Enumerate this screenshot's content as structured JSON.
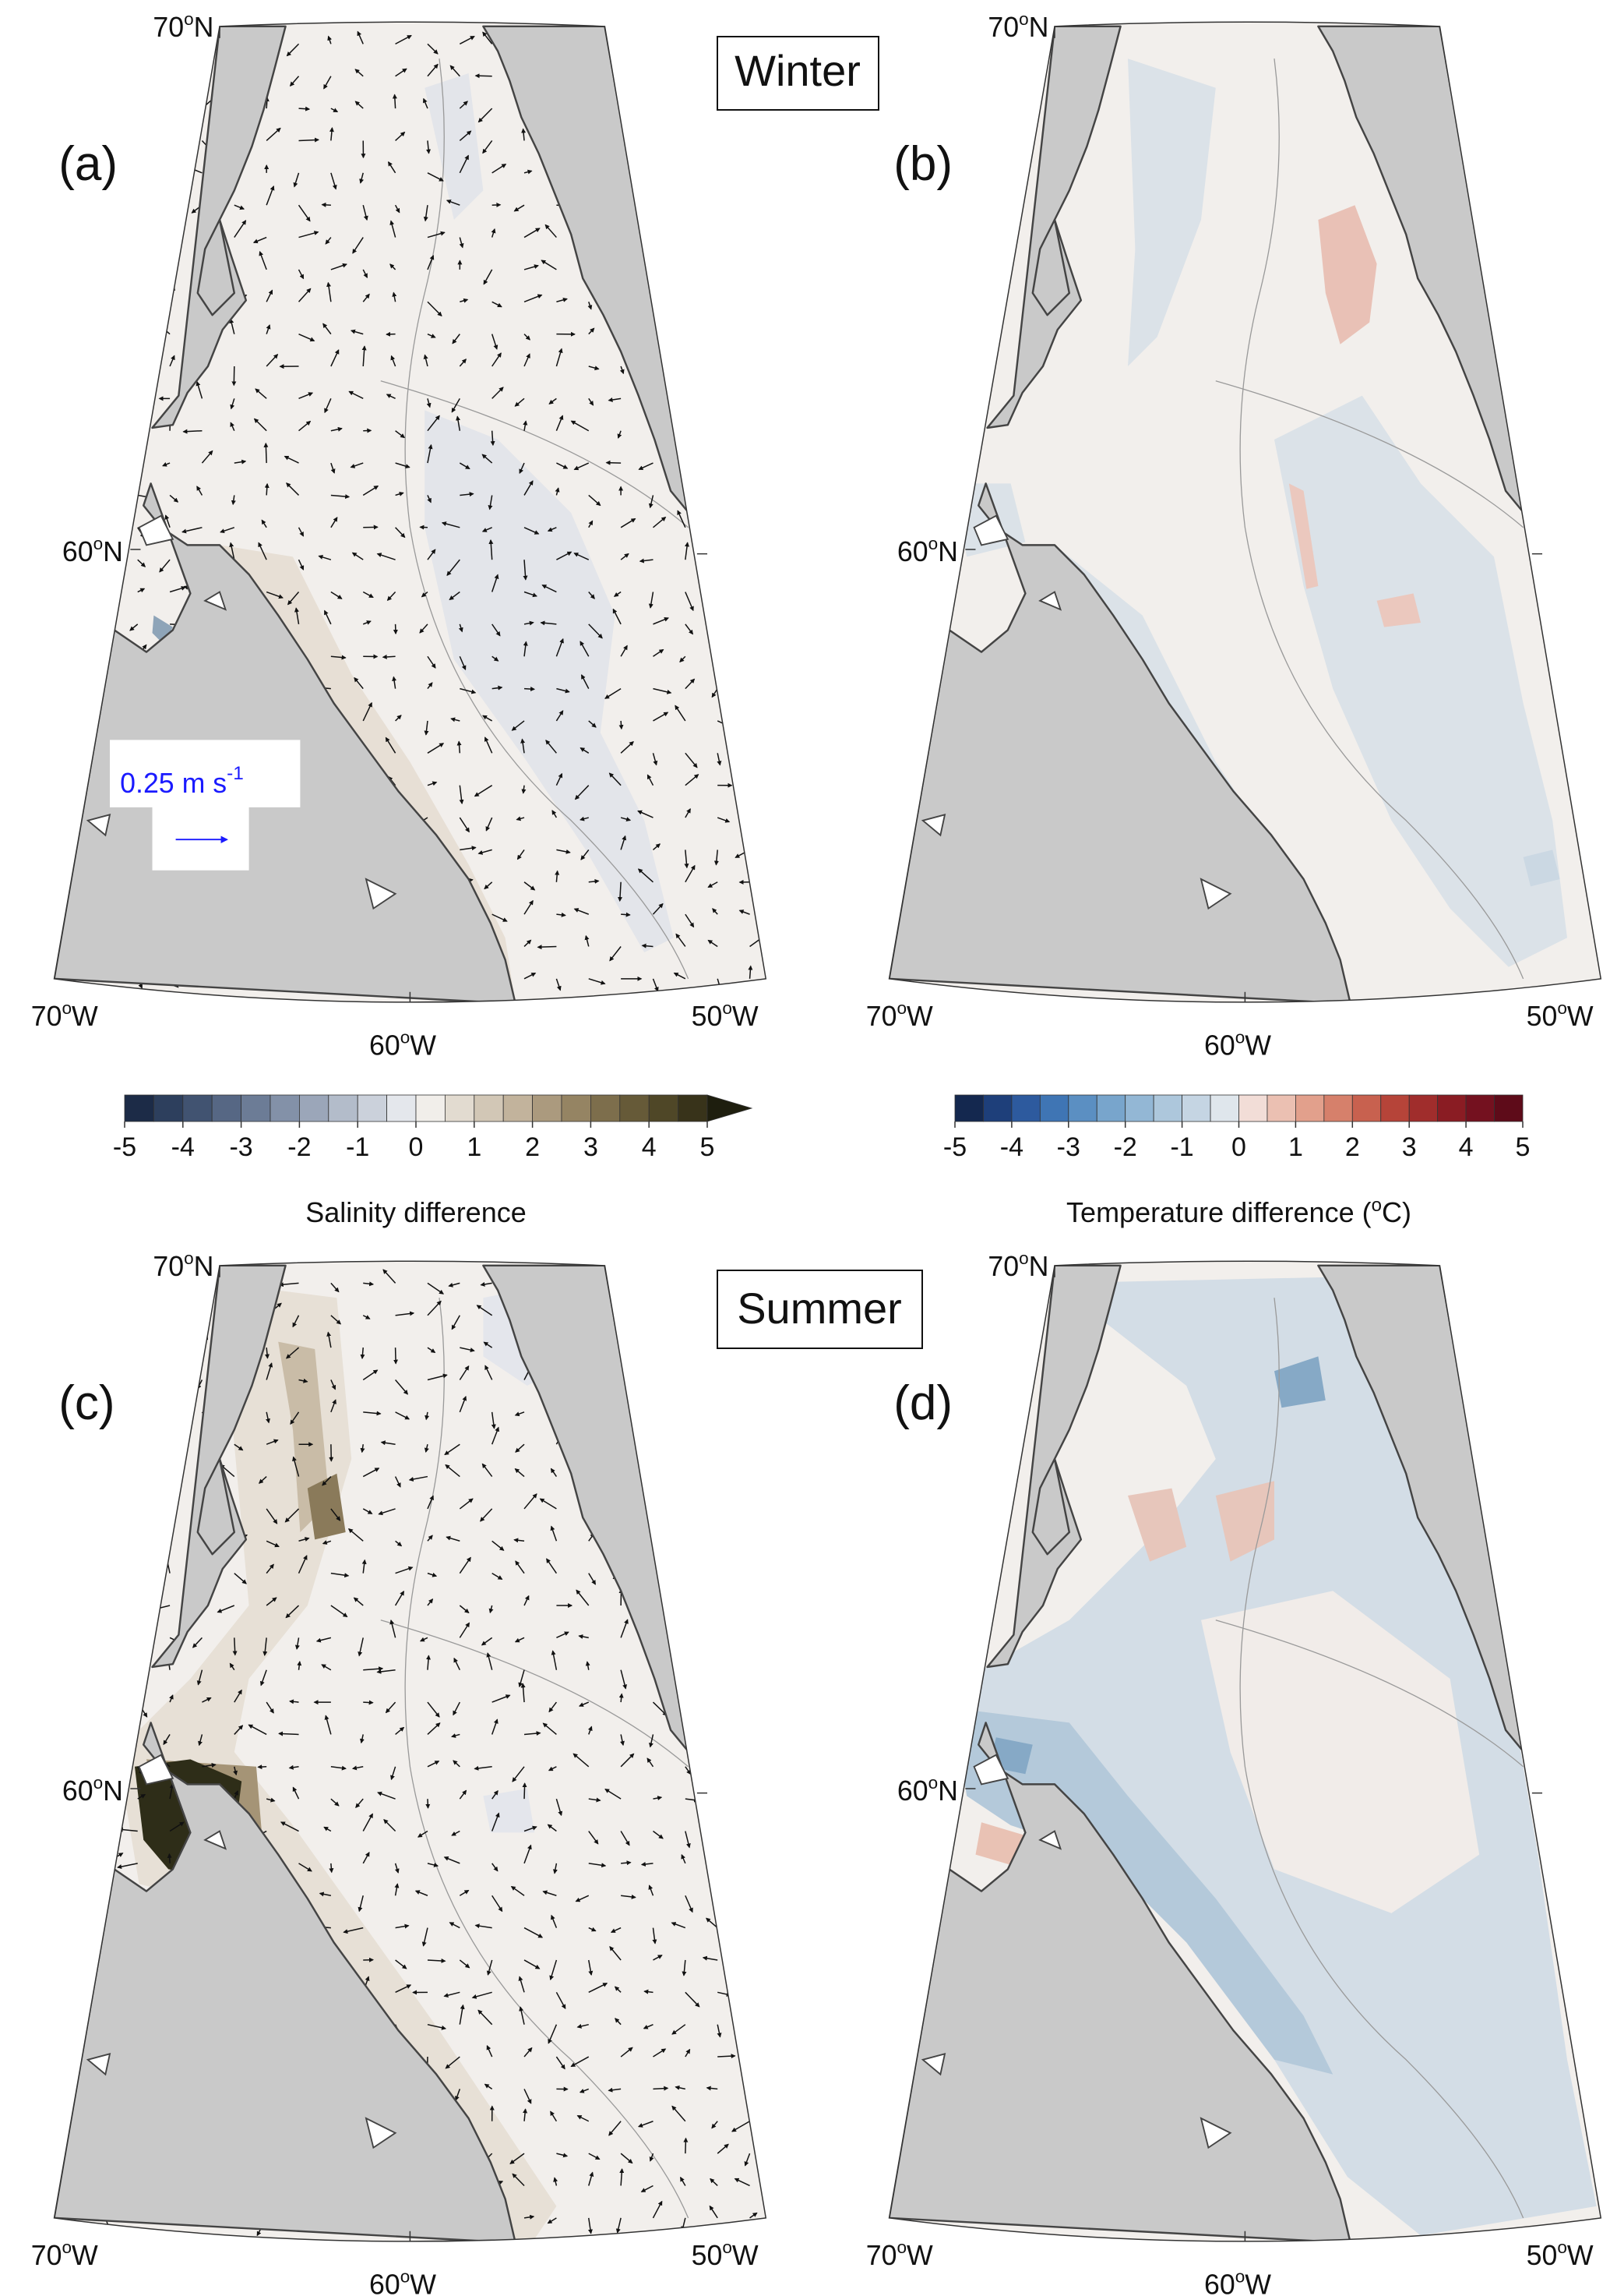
{
  "panels": [
    {
      "letter": "(a)"
    },
    {
      "letter": "(b)"
    },
    {
      "letter": "(c)"
    },
    {
      "letter": "(d)"
    }
  ],
  "season_labels": [
    "Winter",
    "Summer"
  ],
  "graticule": {
    "lat": [
      {
        "deg": "70",
        "sup": "o",
        "hemi": "N"
      },
      {
        "deg": "60",
        "sup": "o",
        "hemi": "N"
      }
    ],
    "lon": [
      {
        "deg": "70",
        "sup": "o",
        "hemi": "W"
      },
      {
        "deg": "60",
        "sup": "o",
        "hemi": "W"
      },
      {
        "deg": "50",
        "sup": "o",
        "hemi": "W"
      }
    ]
  },
  "reference_vector": {
    "text": "0.25 m s",
    "sup": "-1"
  },
  "colorbars": [
    {
      "label": {
        "text": "Salinity difference"
      },
      "ticks": [
        -5,
        -4,
        -3,
        -2,
        -1,
        0,
        1,
        2,
        3,
        4,
        5
      ],
      "levels": [
        -5,
        -4.5,
        -4,
        -3.5,
        -3,
        -2.5,
        -2,
        -1.5,
        -1,
        -0.5,
        0,
        0.5,
        1,
        1.5,
        2,
        2.5,
        3,
        3.5,
        4,
        4.5,
        5
      ],
      "colors": [
        "#1c2b47",
        "#2d3f5d",
        "#415371",
        "#566784",
        "#6c7c96",
        "#8391a8",
        "#9ba6b9",
        "#b3bcca",
        "#cbd1db",
        "#e4e7ec",
        "#f1eeea",
        "#e2dbd0",
        "#d2c7b6",
        "#c2b39c",
        "#ab9a7e",
        "#958463",
        "#7d6e4c",
        "#665a38",
        "#4f4727",
        "#38331a"
      ],
      "extend": "max",
      "extend_color": "#1e1e0e"
    },
    {
      "label": {
        "text": "Temperature difference (",
        "sup": "o",
        "tail": "C)"
      },
      "ticks": [
        -5,
        -4,
        -3,
        -2,
        -1,
        0,
        1,
        2,
        3,
        4,
        5
      ],
      "levels": [
        -5,
        -4.5,
        -4,
        -3.5,
        -3,
        -2.5,
        -2,
        -1.5,
        -1,
        -0.5,
        0,
        0.5,
        1,
        1.5,
        2,
        2.5,
        3,
        3.5,
        4,
        4.5,
        5
      ],
      "colors": [
        "#14284f",
        "#1e3f7a",
        "#2d5a9e",
        "#3f75b4",
        "#5b8fc2",
        "#78a5cc",
        "#93b7d5",
        "#adc7dc",
        "#c5d5e3",
        "#dfe6ec",
        "#f2ddd7",
        "#ebc0b2",
        "#e2a08c",
        "#d6806b",
        "#c8614f",
        "#b64439",
        "#a02d2c",
        "#8a1c23",
        "#74111f",
        "#5e0b19"
      ],
      "extend": "none"
    }
  ]
}
